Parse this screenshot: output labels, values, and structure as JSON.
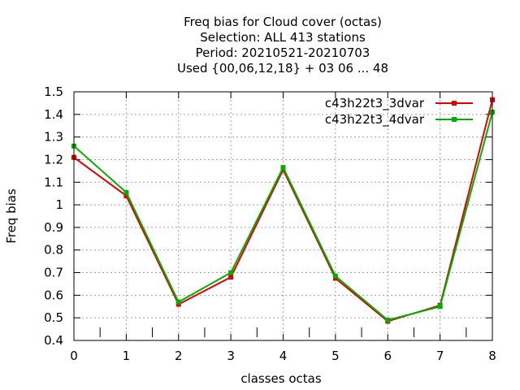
{
  "chart_data": {
    "type": "line",
    "title_lines": [
      "Freq bias  for Cloud cover (octas)",
      "Selection: ALL    413 stations",
      "Period: 20210521-20210703",
      "Used {00,06,12,18} + 03 06 ... 48"
    ],
    "xlabel": "classes octas",
    "ylabel": "Freq bias",
    "x": [
      0,
      1,
      2,
      3,
      4,
      5,
      6,
      7,
      8
    ],
    "xlim": [
      0,
      8
    ],
    "ylim": [
      0.4,
      1.5
    ],
    "xticks": [
      "0",
      "1",
      "2",
      "3",
      "4",
      "5",
      "6",
      "7",
      "8"
    ],
    "yticks": [
      "0.4",
      "0.5",
      "0.6",
      "0.7",
      "0.8",
      "0.9",
      "1",
      "1.1",
      "1.2",
      "1.3",
      "1.4",
      "1.5"
    ],
    "minor_ticks_x": [
      0.5,
      1.5,
      2.5,
      3.5,
      4.5,
      5.5,
      6.5,
      7.5
    ],
    "grid": true,
    "legend_position": "top-right",
    "series": [
      {
        "name": "c43h22t3_3dvar",
        "color": "#e00000",
        "values": [
          1.21,
          1.04,
          0.56,
          0.68,
          1.155,
          0.675,
          0.485,
          0.555,
          1.465
        ]
      },
      {
        "name": "c43h22t3_4dvar",
        "color": "#00b000",
        "values": [
          1.26,
          1.055,
          0.57,
          0.7,
          1.165,
          0.685,
          0.49,
          0.55,
          1.41
        ]
      }
    ]
  }
}
